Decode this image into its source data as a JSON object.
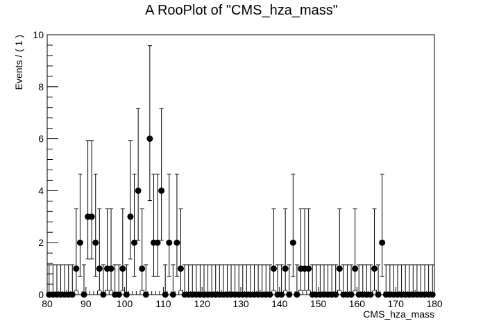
{
  "chart_data": {
    "type": "scatter",
    "title": "A RooPlot of \"CMS_hza_mass\"",
    "xlabel": "CMS_hza_mass",
    "ylabel": "Events / ( 1 )",
    "xlim": [
      80,
      180
    ],
    "ylim": [
      0,
      10
    ],
    "x_ticks": [
      80,
      90,
      100,
      110,
      120,
      130,
      140,
      150,
      160,
      170,
      180
    ],
    "y_ticks": [
      0,
      2,
      4,
      6,
      8,
      10
    ],
    "bin_width": 1,
    "x": [
      80.5,
      81.5,
      82.5,
      83.5,
      84.5,
      85.5,
      86.5,
      87.5,
      88.5,
      89.5,
      90.5,
      91.5,
      92.5,
      93.5,
      94.5,
      95.5,
      96.5,
      97.5,
      98.5,
      99.5,
      100.5,
      101.5,
      102.5,
      103.5,
      104.5,
      105.5,
      106.5,
      107.5,
      108.5,
      109.5,
      110.5,
      111.5,
      112.5,
      113.5,
      114.5,
      115.5,
      116.5,
      117.5,
      118.5,
      119.5,
      120.5,
      121.5,
      122.5,
      123.5,
      124.5,
      125.5,
      126.5,
      127.5,
      128.5,
      129.5,
      130.5,
      131.5,
      132.5,
      133.5,
      134.5,
      135.5,
      136.5,
      137.5,
      138.5,
      139.5,
      140.5,
      141.5,
      142.5,
      143.5,
      144.5,
      145.5,
      146.5,
      147.5,
      148.5,
      149.5,
      150.5,
      151.5,
      152.5,
      153.5,
      154.5,
      155.5,
      156.5,
      157.5,
      158.5,
      159.5,
      160.5,
      161.5,
      162.5,
      163.5,
      164.5,
      165.5,
      166.5,
      167.5,
      168.5,
      169.5,
      170.5,
      171.5,
      172.5,
      173.5,
      174.5,
      175.5,
      176.5,
      177.5,
      178.5,
      179.5
    ],
    "y": [
      0,
      0,
      0,
      0,
      0,
      0,
      0,
      1,
      2,
      0,
      3,
      3,
      2,
      1,
      0,
      1,
      1,
      0,
      0,
      1,
      0,
      3,
      2,
      4,
      1,
      0,
      6,
      2,
      2,
      4,
      0,
      2,
      0,
      2,
      1,
      0,
      0,
      0,
      0,
      0,
      0,
      0,
      0,
      0,
      0,
      0,
      0,
      0,
      0,
      0,
      0,
      0,
      0,
      0,
      0,
      0,
      0,
      0,
      1,
      0,
      0,
      1,
      0,
      2,
      0,
      1,
      1,
      1,
      0,
      0,
      0,
      0,
      0,
      0,
      0,
      1,
      0,
      0,
      0,
      1,
      0,
      0,
      0,
      0,
      1,
      0,
      2,
      0,
      0,
      0,
      0,
      0,
      0,
      0,
      0,
      0,
      0,
      0,
      0,
      0
    ],
    "errors_poisson": {
      "0": [
        0,
        1.15
      ],
      "1": [
        0.83,
        2.3
      ],
      "2": [
        1.29,
        2.64
      ],
      "3": [
        1.63,
        2.92
      ],
      "4": [
        1.91,
        3.16
      ],
      "6": [
        2.38,
        3.58
      ]
    },
    "marker": "circle",
    "marker_color": "#000000"
  }
}
